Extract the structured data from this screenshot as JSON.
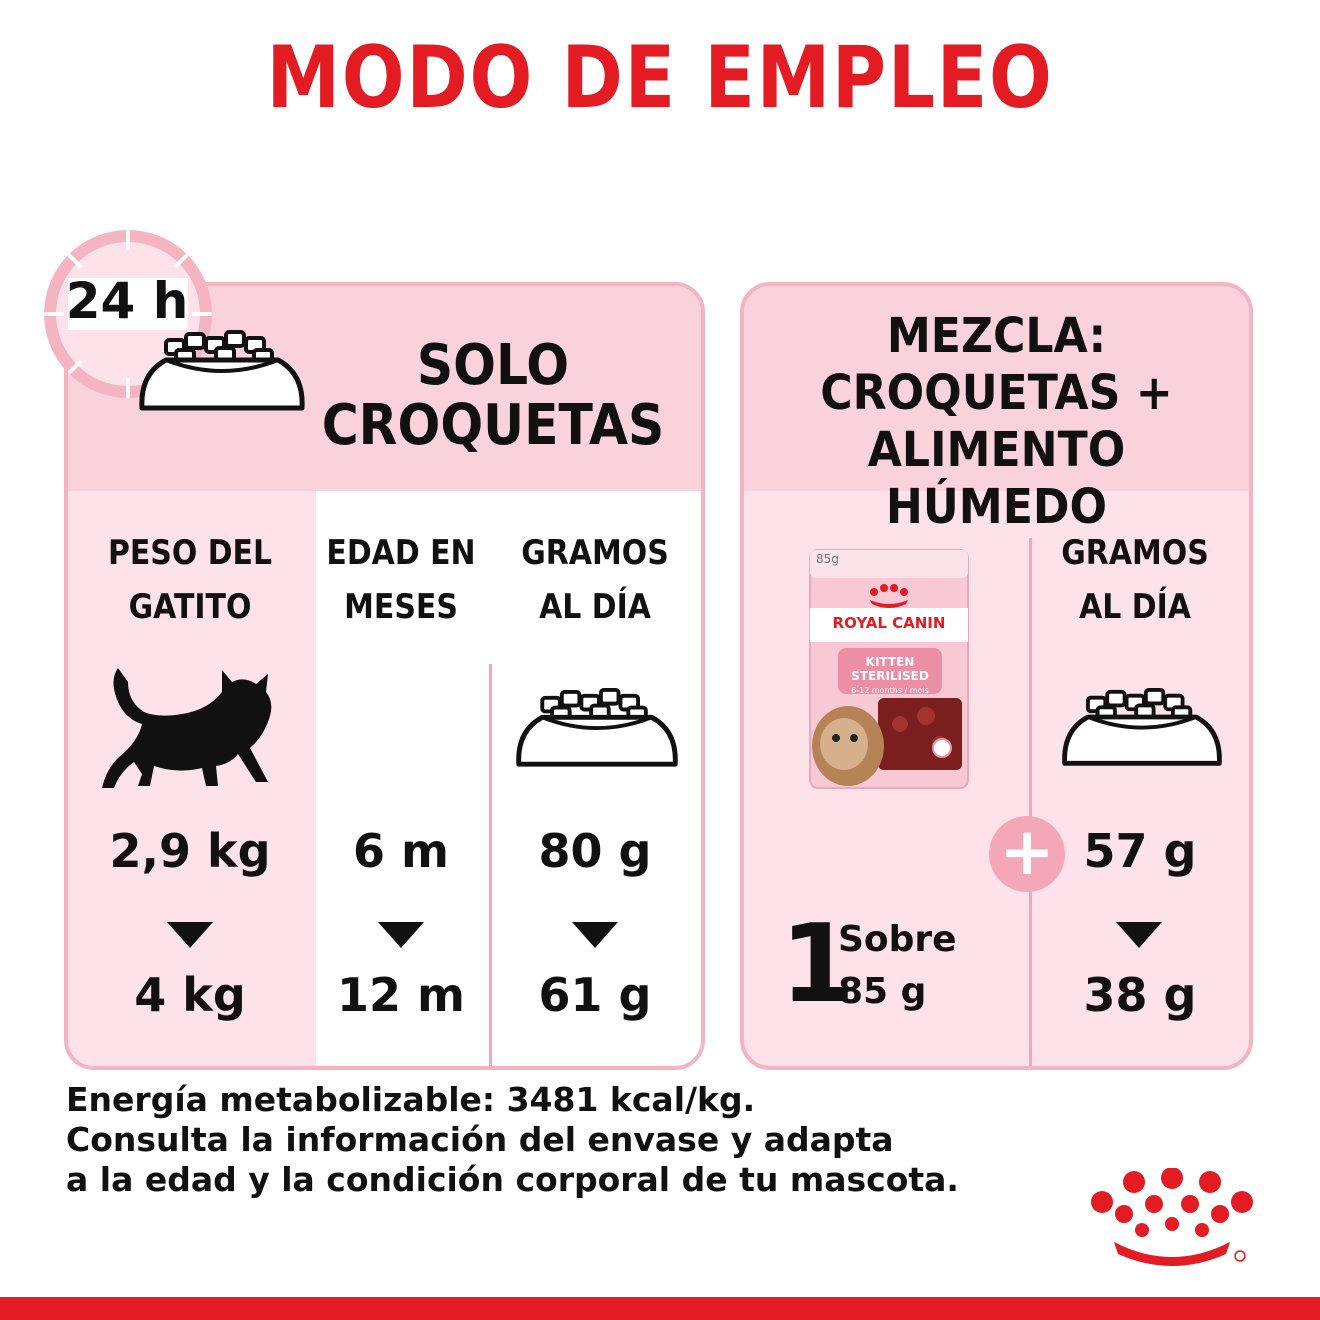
{
  "title": "MODO DE EMPLEO",
  "clock_label": "24 h",
  "left_panel": {
    "heading": "SOLO\nCROQUETAS",
    "columns": [
      {
        "header": "PESO DEL\nGATITO",
        "from": "2,9 kg",
        "to": "4 kg",
        "icon": "kitten-silhouette-icon"
      },
      {
        "header": "EDAD EN\nMESES",
        "from": "6 m",
        "to": "12 m"
      },
      {
        "header": "GRAMOS\nAL DÍA",
        "from": "80 g",
        "to": "61 g",
        "icon": "food-bowl-icon"
      }
    ]
  },
  "right_panel": {
    "heading": "MEZCLA:\nCROQUETAS +\nALIMENTO HÚMEDO",
    "pouch": {
      "weight": "85g",
      "brand": "ROYAL CANIN",
      "product": "KITTEN\nSTERILISED",
      "age": "6-12 months / mois"
    },
    "count": "1",
    "count_label": "Sobre\n85 g",
    "plus": "+",
    "column": {
      "header": "GRAMOS\nAL DÍA",
      "from": "57 g",
      "to": "38 g",
      "icon": "food-bowl-icon"
    }
  },
  "footer": [
    "Energía metabolizable: 3481 kcal/kg.",
    "Consulta la información del envase y adapta",
    "a la edad y la condición corporal de tu mascota."
  ],
  "colors": {
    "brand_red": "#e31b23",
    "panel_pink": "#fde3e9",
    "band_pink": "#f9d2dc",
    "border_pink": "#f4b4c2"
  }
}
